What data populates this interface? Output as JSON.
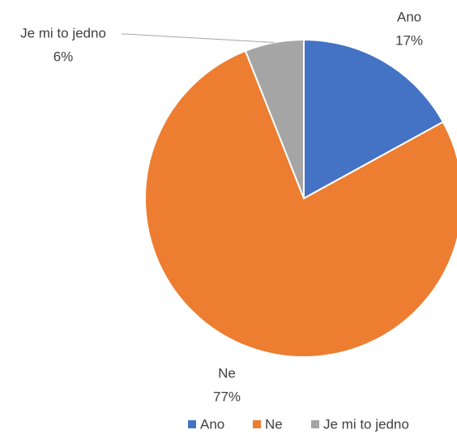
{
  "chart_data": {
    "type": "pie",
    "categories": [
      "Ano",
      "Ne",
      "Je mi to jedno"
    ],
    "values": [
      17,
      77,
      6
    ],
    "value_labels": [
      "17%",
      "77%",
      "6%"
    ],
    "colors": [
      "#4472c4",
      "#ed7d31",
      "#a5a5a5"
    ],
    "legend": "bottom"
  }
}
